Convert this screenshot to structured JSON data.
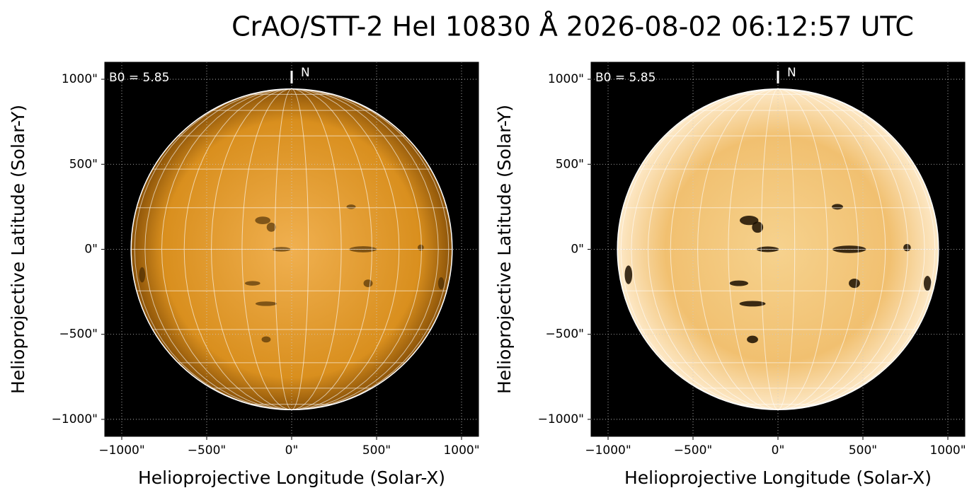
{
  "title": "CrAO/STT-2 HeI 10830 Å 2026-08-02 06:12:57 UTC",
  "chart_data": [
    {
      "type": "image",
      "xlabel": "Helioprojective Longitude (Solar-X)",
      "ylabel": "Helioprojective Latitude (Solar-Y)",
      "xlim": [
        -1100,
        1100
      ],
      "ylim": [
        -1100,
        1100
      ],
      "xticks": [
        {
          "value": -1000,
          "label": "−1000\""
        },
        {
          "value": -500,
          "label": "−500\""
        },
        {
          "value": 0,
          "label": "0\""
        },
        {
          "value": 500,
          "label": "500\""
        },
        {
          "value": 1000,
          "label": "1000\""
        }
      ],
      "yticks": [
        {
          "value": -1000,
          "label": "−1000\""
        },
        {
          "value": -500,
          "label": "−500\""
        },
        {
          "value": 0,
          "label": "0\""
        },
        {
          "value": 500,
          "label": "500\""
        },
        {
          "value": 1000,
          "label": "1000\""
        }
      ],
      "grid": true,
      "disk_radius": 945,
      "annotation": "B0 = 5.85",
      "north_label": "N"
    },
    {
      "type": "image",
      "xlabel": "Helioprojective Longitude (Solar-X)",
      "ylabel": "Helioprojective Latitude (Solar-Y)",
      "xlim": [
        -1100,
        1100
      ],
      "ylim": [
        -1100,
        1100
      ],
      "xticks": [
        {
          "value": -1000,
          "label": "−1000\""
        },
        {
          "value": -500,
          "label": "−500\""
        },
        {
          "value": 0,
          "label": "0\""
        },
        {
          "value": 500,
          "label": "500\""
        },
        {
          "value": 1000,
          "label": "1000\""
        }
      ],
      "yticks": [
        {
          "value": -1000,
          "label": "−1000\""
        },
        {
          "value": -500,
          "label": "−500\""
        },
        {
          "value": 0,
          "label": "0\""
        },
        {
          "value": 500,
          "label": "500\""
        },
        {
          "value": 1000,
          "label": "1000\""
        }
      ],
      "grid": true,
      "disk_radius": 945,
      "annotation": "B0 = 5.85",
      "north_label": "N"
    }
  ]
}
